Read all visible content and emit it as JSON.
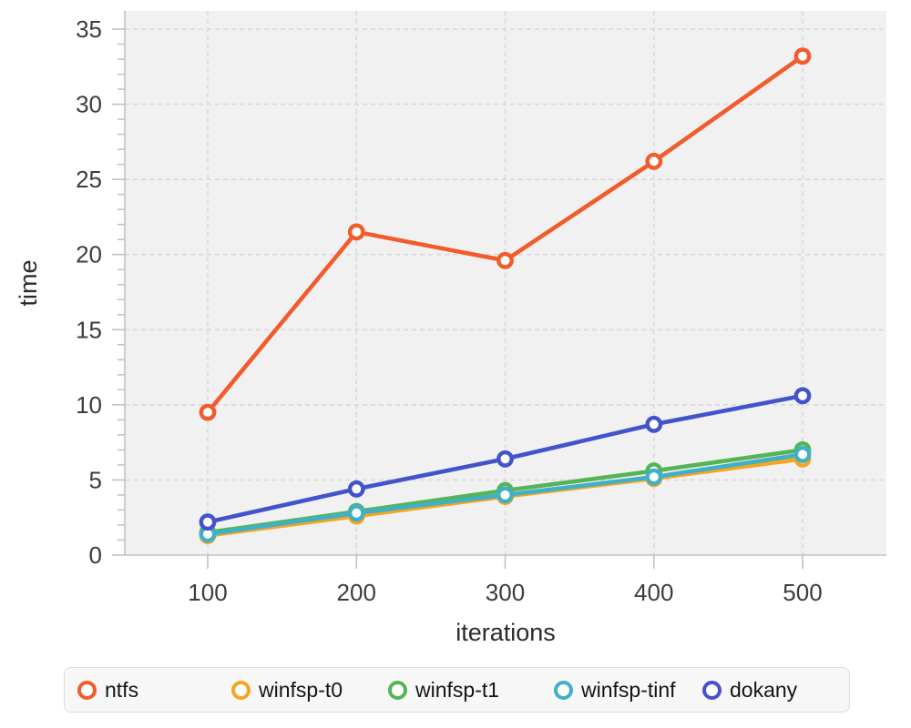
{
  "chart_data": {
    "type": "line",
    "title": "",
    "xlabel": "iterations",
    "ylabel": "time",
    "x": [
      100,
      200,
      300,
      400,
      500
    ],
    "x_tick_labels": [
      "100",
      "200",
      "300",
      "400",
      "500"
    ],
    "y_major_ticks": [
      0,
      5,
      10,
      15,
      20,
      25,
      30,
      35
    ],
    "y_minor_step": 1,
    "xlim": [
      100,
      500
    ],
    "ylim": [
      0,
      35
    ],
    "grid": "dashed",
    "legend_position": "bottom",
    "series": [
      {
        "name": "ntfs",
        "color": "#f25b2b",
        "values": [
          9.5,
          21.5,
          19.6,
          26.2,
          33.2
        ]
      },
      {
        "name": "winfsp-t0",
        "color": "#f6a51f",
        "values": [
          1.3,
          2.6,
          3.9,
          5.1,
          6.4
        ]
      },
      {
        "name": "winfsp-t1",
        "color": "#55b455",
        "values": [
          1.5,
          2.9,
          4.3,
          5.6,
          7.0
        ]
      },
      {
        "name": "winfsp-tinf",
        "color": "#3fb0c7",
        "values": [
          1.4,
          2.8,
          4.0,
          5.2,
          6.7
        ]
      },
      {
        "name": "dokany",
        "color": "#4353cb",
        "values": [
          2.2,
          4.4,
          6.4,
          8.7,
          10.6
        ]
      }
    ]
  },
  "styles": {
    "plot_bg": "#f1f1f2",
    "grid_color": "#d9d9d9",
    "axis_color": "#c2c2c2",
    "tick_label_color": "#3d3d3d",
    "axis_title_color": "#2b2b2b",
    "legend_bg": "#f7f7f8",
    "legend_border": "#dcdcdc",
    "legend_text": "#141414"
  }
}
